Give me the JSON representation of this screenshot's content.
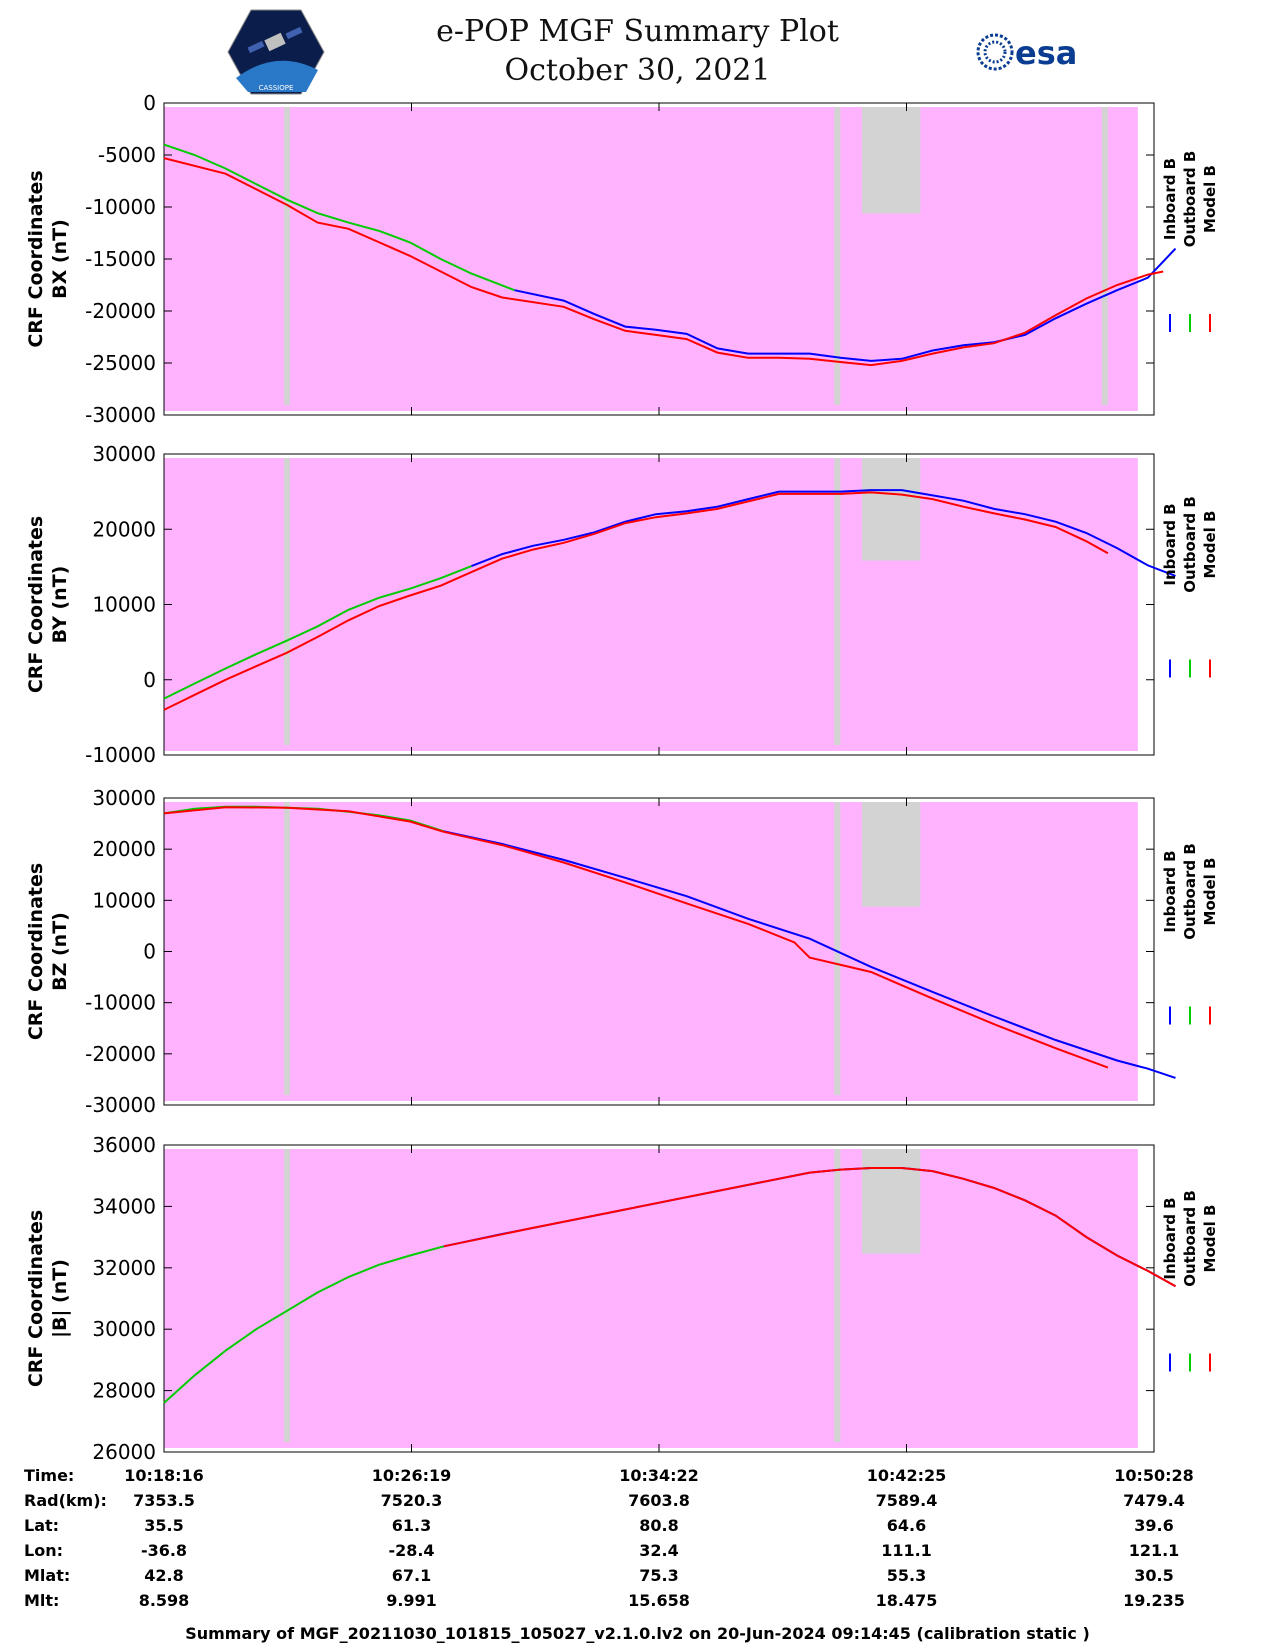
{
  "header": {
    "title_line1": "e-POP MGF Summary Plot",
    "title_line2": "October 30, 2021",
    "left_logo_text": "CASSIOPE",
    "right_logo_text": "esa"
  },
  "colors": {
    "inboard": "#0000ff",
    "outboard": "#00cc00",
    "model": "#ff0000",
    "coverage_magenta": "#ffb3ff",
    "coverage_gray": "#d3d3d3"
  },
  "chart_data": [
    {
      "type": "line",
      "ylabel": "CRF Coordinates\nBX (nT)",
      "ylim": [
        -30000,
        0
      ],
      "yticks": [
        0,
        -5000,
        -10000,
        -15000,
        -20000,
        -25000,
        -30000
      ],
      "xlim_minutes": [
        0,
        32.2
      ],
      "legend": [
        "Inboard B",
        "Outboard B",
        "Model B"
      ],
      "legend_position": "right",
      "series": [
        {
          "name": "Outboard B",
          "x": [
            0,
            1,
            2,
            3,
            4,
            5,
            6,
            7,
            8,
            9,
            10,
            11.4
          ],
          "values": [
            -4000,
            -5000,
            -6300,
            -7800,
            -9300,
            -10600,
            -11500,
            -12300,
            -13400,
            -15000,
            -16400,
            -18000
          ]
        },
        {
          "name": "Inboard B",
          "x": [
            11.4,
            13,
            14,
            15,
            16,
            17,
            18,
            19,
            20,
            21,
            22,
            23,
            24,
            25,
            26,
            27,
            28,
            29,
            30,
            31,
            32,
            32.9
          ],
          "values": [
            -18000,
            -19000,
            -20300,
            -21500,
            -21800,
            -22200,
            -23600,
            -24100,
            -24100,
            -24100,
            -24500,
            -24800,
            -24600,
            -23800,
            -23300,
            -23000,
            -22300,
            -20700,
            -19300,
            -18000,
            -16800,
            -14000
          ]
        },
        {
          "name": "Model B",
          "x": [
            0,
            2,
            4,
            5,
            6,
            8,
            10,
            11,
            13,
            14,
            15,
            16,
            17,
            18,
            19,
            20,
            21,
            22,
            23,
            24,
            25,
            26,
            27,
            28,
            29,
            30,
            31,
            32,
            32.5
          ],
          "values": [
            -5300,
            -6800,
            -9800,
            -11500,
            -12100,
            -14700,
            -17700,
            -18700,
            -19600,
            -20800,
            -21900,
            -22300,
            -22700,
            -24000,
            -24500,
            -24500,
            -24600,
            -24900,
            -25200,
            -24800,
            -24100,
            -23500,
            -23100,
            -22100,
            -20400,
            -18800,
            -17500,
            -16500,
            -16200
          ]
        }
      ],
      "coverage": {
        "magenta_from": 0,
        "magenta_to": 32.2,
        "gray_bars": [
          [
            3.9,
            4.1
          ],
          [
            21.8,
            22.0
          ],
          [
            22.7,
            24.6
          ],
          [
            30.5,
            30.7
          ]
        ]
      }
    },
    {
      "type": "line",
      "ylabel": "CRF Coordinates\nBY (nT)",
      "ylim": [
        -10000,
        30000
      ],
      "yticks": [
        30000,
        20000,
        10000,
        0,
        -10000
      ],
      "xlim_minutes": [
        0,
        32.2
      ],
      "legend": [
        "Inboard B",
        "Outboard B",
        "Model B"
      ],
      "legend_position": "right",
      "series": [
        {
          "name": "Outboard B",
          "x": [
            0,
            1,
            2,
            3,
            4,
            5,
            6,
            7,
            8,
            9,
            10
          ],
          "values": [
            -2500,
            -500,
            1500,
            3400,
            5200,
            7100,
            9300,
            10900,
            12100,
            13500,
            15100
          ]
        },
        {
          "name": "Inboard B",
          "x": [
            10,
            11,
            12,
            13,
            14,
            15,
            16,
            17,
            18,
            19,
            20,
            21,
            22,
            23,
            24,
            25,
            26,
            27,
            28,
            29,
            30,
            31,
            32,
            32.9
          ],
          "values": [
            15100,
            16700,
            17800,
            18600,
            19600,
            21000,
            22000,
            22400,
            23000,
            24000,
            25000,
            25000,
            25000,
            25200,
            25200,
            24500,
            23800,
            22700,
            22000,
            21000,
            19500,
            17500,
            15200,
            13800
          ]
        },
        {
          "name": "Model B",
          "x": [
            0,
            1,
            2,
            3,
            4,
            5,
            6,
            7,
            8,
            9,
            10,
            11,
            12,
            13,
            14,
            15,
            16,
            17,
            18,
            19,
            20,
            21,
            22,
            23,
            24,
            25,
            26,
            27,
            28,
            29,
            30,
            30.7
          ],
          "values": [
            -4000,
            -2000,
            0,
            1800,
            3600,
            5700,
            7900,
            9800,
            11200,
            12500,
            14300,
            16100,
            17300,
            18200,
            19400,
            20800,
            21600,
            22100,
            22700,
            23700,
            24700,
            24700,
            24700,
            24900,
            24600,
            24000,
            23000,
            22100,
            21300,
            20300,
            18400,
            16800
          ]
        }
      ],
      "coverage": {
        "magenta_from": 0,
        "magenta_to": 32.2,
        "gray_bars": [
          [
            3.9,
            4.1
          ],
          [
            21.8,
            22.0
          ],
          [
            22.7,
            24.6
          ]
        ]
      }
    },
    {
      "type": "line",
      "ylabel": "CRF Coordinates\nBZ (nT)",
      "ylim": [
        -30000,
        30000
      ],
      "yticks": [
        30000,
        20000,
        10000,
        0,
        -10000,
        -20000,
        -30000
      ],
      "xlim_minutes": [
        0,
        32.2
      ],
      "legend": [
        "Inboard B",
        "Outboard B",
        "Model B"
      ],
      "legend_position": "right",
      "series": [
        {
          "name": "Outboard B",
          "x": [
            0,
            1,
            2,
            3,
            4,
            5,
            6,
            7,
            8,
            9.1
          ],
          "values": [
            27000,
            27900,
            28300,
            28300,
            28100,
            27900,
            27300,
            26600,
            25600,
            23500
          ]
        },
        {
          "name": "Inboard B",
          "x": [
            9.1,
            11,
            13,
            15,
            17,
            19,
            21,
            23,
            25,
            27,
            29,
            31,
            32,
            32.9
          ],
          "values": [
            23500,
            21000,
            17900,
            14400,
            10800,
            6400,
            2500,
            -3000,
            -7900,
            -12700,
            -17300,
            -21300,
            -22900,
            -24700
          ]
        },
        {
          "name": "Model B",
          "x": [
            0,
            2,
            4,
            6,
            8,
            9.1,
            11,
            13,
            15,
            17,
            19,
            20.5,
            21,
            23,
            25,
            27,
            29,
            30.7
          ],
          "values": [
            27000,
            28200,
            28100,
            27400,
            25400,
            23400,
            20800,
            17400,
            13500,
            9400,
            5400,
            1800,
            -1200,
            -4000,
            -9200,
            -14200,
            -18900,
            -22700
          ]
        }
      ],
      "coverage": {
        "magenta_from": 0,
        "magenta_to": 32.2,
        "gray_bars": [
          [
            3.9,
            4.1
          ],
          [
            21.8,
            22.0
          ],
          [
            22.7,
            24.6
          ]
        ]
      }
    },
    {
      "type": "line",
      "ylabel": "CRF Coordinates\n|B| (nT)",
      "ylim": [
        26000,
        36000
      ],
      "yticks": [
        36000,
        34000,
        32000,
        30000,
        28000,
        26000
      ],
      "xlim_minutes": [
        0,
        32.2
      ],
      "legend": [
        "Inboard B",
        "Outboard B",
        "Model B"
      ],
      "legend_position": "right",
      "series": [
        {
          "name": "Outboard B",
          "x": [
            0,
            1,
            2,
            3,
            4,
            5,
            6,
            7,
            8,
            9.1
          ],
          "values": [
            27600,
            28500,
            29300,
            30000,
            30600,
            31200,
            31700,
            32100,
            32400,
            32700
          ]
        },
        {
          "name": "Inboard B",
          "x": [
            9.1,
            11,
            13,
            15,
            17,
            19,
            21,
            22,
            23,
            24,
            25,
            26,
            27,
            28,
            29,
            30,
            31,
            32,
            32.9
          ],
          "values": [
            32700,
            33100,
            33500,
            33900,
            34300,
            34700,
            35100,
            35200,
            35250,
            35250,
            35150,
            34900,
            34600,
            34200,
            33700,
            33000,
            32400,
            31900,
            31400
          ]
        },
        {
          "name": "Model B",
          "x": [
            9.1,
            12,
            15,
            18,
            21,
            22,
            23,
            24,
            25,
            26,
            27,
            28,
            29,
            30,
            31,
            32,
            32.9
          ],
          "values": [
            32700,
            33300,
            33900,
            34500,
            35100,
            35200,
            35250,
            35250,
            35150,
            34900,
            34600,
            34200,
            33700,
            33000,
            32400,
            31900,
            31400
          ]
        }
      ],
      "coverage": {
        "magenta_from": 0,
        "magenta_to": 32.2,
        "gray_bars": [
          [
            3.9,
            4.1
          ],
          [
            21.8,
            22.0
          ],
          [
            22.7,
            24.6
          ]
        ]
      }
    }
  ],
  "x_ticks": [
    "10:18:16",
    "10:26:19",
    "10:34:22",
    "10:42:25",
    "10:50:28"
  ],
  "info_table": {
    "rows": [
      {
        "label": "Time:",
        "values": [
          "10:18:16",
          "10:26:19",
          "10:34:22",
          "10:42:25",
          "10:50:28"
        ]
      },
      {
        "label": "Rad(km):",
        "values": [
          "7353.5",
          "7520.3",
          "7603.8",
          "7589.4",
          "7479.4"
        ]
      },
      {
        "label": "Lat:",
        "values": [
          "35.5",
          "61.3",
          "80.8",
          "64.6",
          "39.6"
        ]
      },
      {
        "label": "Lon:",
        "values": [
          "-36.8",
          "-28.4",
          "32.4",
          "111.1",
          "121.1"
        ]
      },
      {
        "label": "Mlat:",
        "values": [
          "42.8",
          "67.1",
          "75.3",
          "55.3",
          "30.5"
        ]
      },
      {
        "label": "Mlt:",
        "values": [
          "8.598",
          "9.991",
          "15.658",
          "18.475",
          "19.235"
        ]
      }
    ]
  },
  "footer": "Summary of MGF_20211030_101815_105027_v2.1.0.lv2 on 20-Jun-2024 09:14:45 (calibration static )"
}
